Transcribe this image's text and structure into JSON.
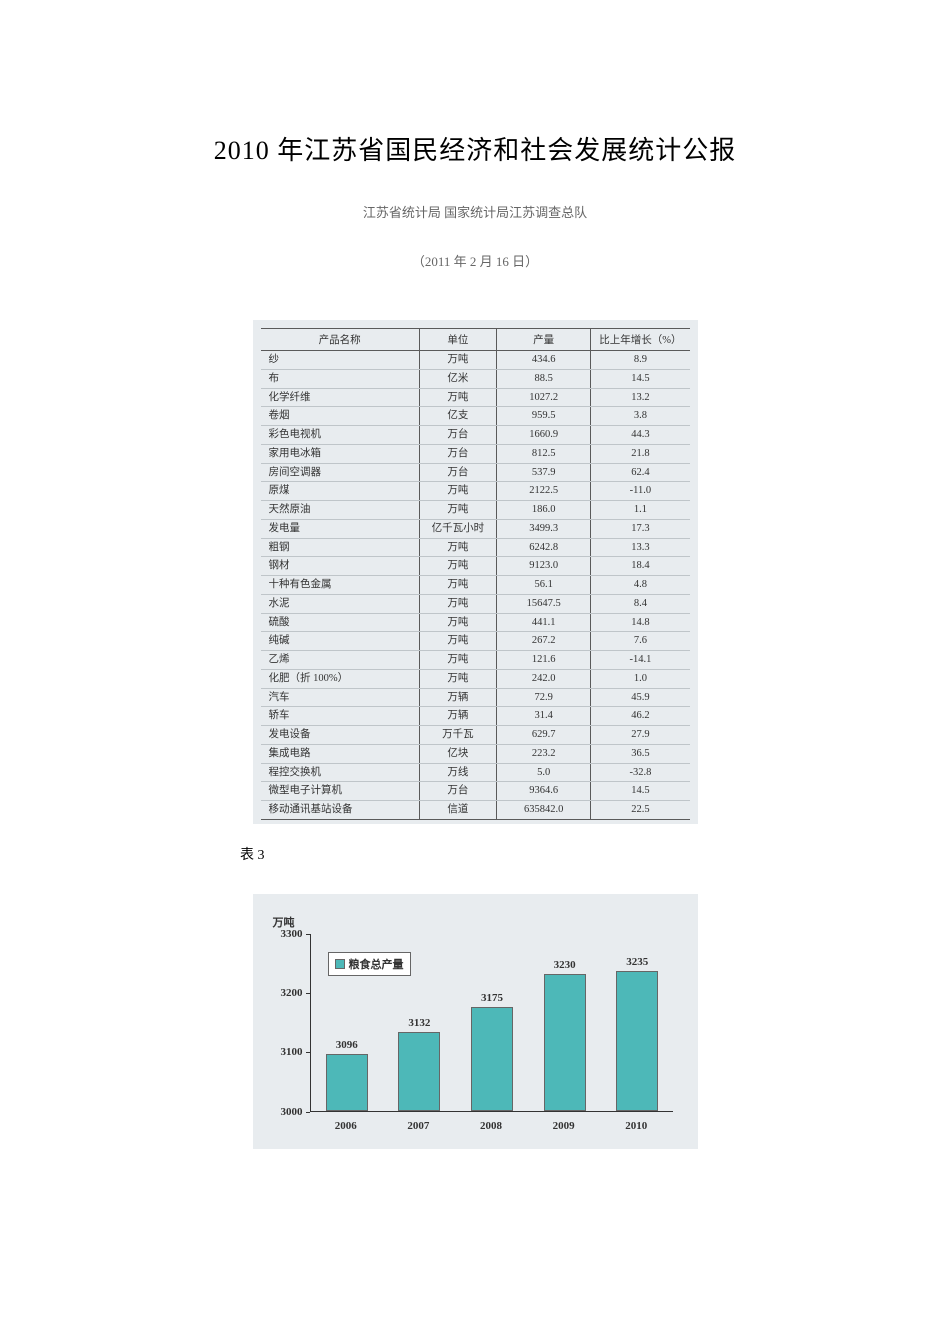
{
  "title": "2010 年江苏省国民经济和社会发展统计公报",
  "subtitle": "江苏省统计局  国家统计局江苏调查总队",
  "date": "（2011 年 2 月 16 日）",
  "table": {
    "columns": [
      "产品名称",
      "单位",
      "产量",
      "比上年增长（%）"
    ],
    "rows": [
      [
        "纱",
        "万吨",
        "434.6",
        "8.9"
      ],
      [
        "布",
        "亿米",
        "88.5",
        "14.5"
      ],
      [
        "化学纤维",
        "万吨",
        "1027.2",
        "13.2"
      ],
      [
        "卷烟",
        "亿支",
        "959.5",
        "3.8"
      ],
      [
        "彩色电视机",
        "万台",
        "1660.9",
        "44.3"
      ],
      [
        "家用电冰箱",
        "万台",
        "812.5",
        "21.8"
      ],
      [
        "房间空调器",
        "万台",
        "537.9",
        "62.4"
      ],
      [
        "原煤",
        "万吨",
        "2122.5",
        "-11.0"
      ],
      [
        "天然原油",
        "万吨",
        "186.0",
        "1.1"
      ],
      [
        "发电量",
        "亿千瓦小时",
        "3499.3",
        "17.3"
      ],
      [
        "粗钢",
        "万吨",
        "6242.8",
        "13.3"
      ],
      [
        "钢材",
        "万吨",
        "9123.0",
        "18.4"
      ],
      [
        "十种有色金属",
        "万吨",
        "56.1",
        "4.8"
      ],
      [
        "水泥",
        "万吨",
        "15647.5",
        "8.4"
      ],
      [
        "硫酸",
        "万吨",
        "441.1",
        "14.8"
      ],
      [
        "纯碱",
        "万吨",
        "267.2",
        "7.6"
      ],
      [
        "乙烯",
        "万吨",
        "121.6",
        "-14.1"
      ],
      [
        "化肥（折 100%）",
        "万吨",
        "242.0",
        "1.0"
      ],
      [
        "汽车",
        "万辆",
        "72.9",
        "45.9"
      ],
      [
        "轿车",
        "万辆",
        "31.4",
        "46.2"
      ],
      [
        "发电设备",
        "万千瓦",
        "629.7",
        "27.9"
      ],
      [
        "集成电路",
        "亿块",
        "223.2",
        "36.5"
      ],
      [
        "程控交换机",
        "万线",
        "5.0",
        "-32.8"
      ],
      [
        "微型电子计算机",
        "万台",
        "9364.6",
        "14.5"
      ],
      [
        "移动通讯基站设备",
        "信道",
        "635842.0",
        "22.5"
      ]
    ]
  },
  "caption": "表 3",
  "chart": {
    "y_unit": "万吨",
    "legend": "粮食总产量",
    "ylim": [
      3000,
      3300
    ],
    "yticks": [
      3000,
      3100,
      3200,
      3300
    ],
    "categories": [
      "2006",
      "2007",
      "2008",
      "2009",
      "2010"
    ],
    "values": [
      3096,
      3132,
      3175,
      3230,
      3235
    ],
    "bar_color": "#4db8b8",
    "bar_border": "#666666",
    "axis_color": "#333333",
    "bg": "#e8ecef"
  }
}
